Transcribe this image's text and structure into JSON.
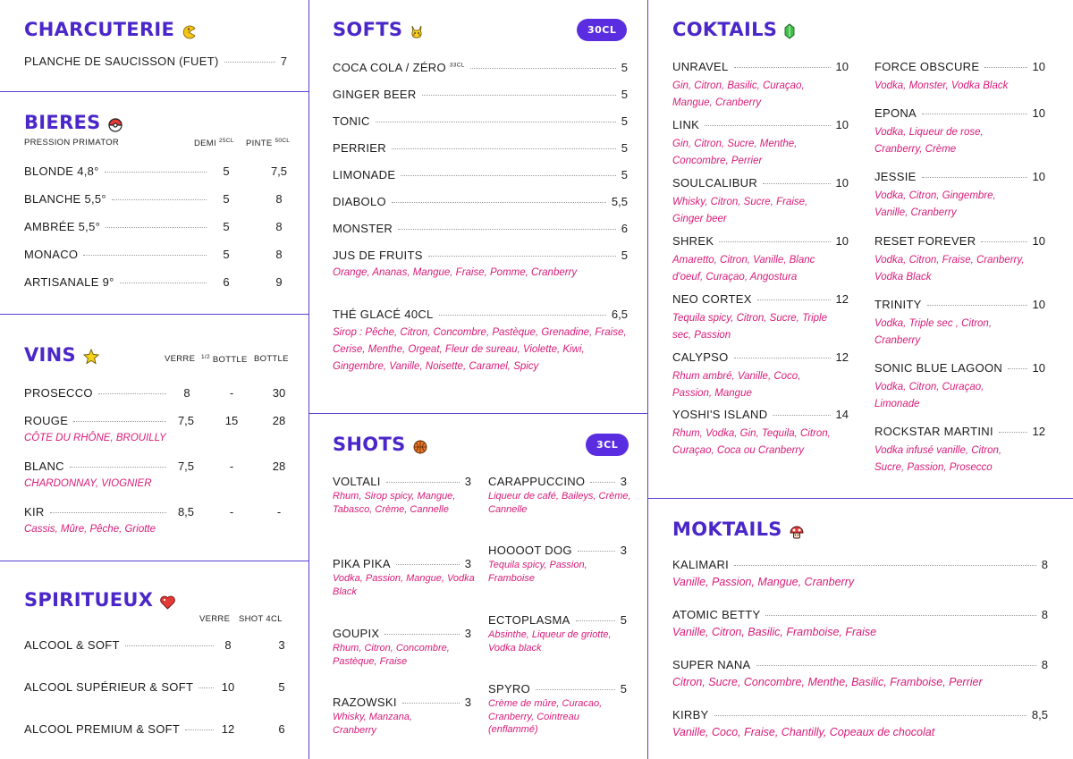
{
  "charcuterie": {
    "title": "CHARCUTERIE",
    "icon": "pacman-icon",
    "items": [
      {
        "name": "PLANCHE DE SAUCISSON (FUET)",
        "price": "7"
      }
    ]
  },
  "bieres": {
    "title": "BIERES",
    "icon": "pokeball-icon",
    "subtitle": "PRESSION PRIMATOR",
    "col_demi": "DEMI",
    "col_demi_sup": "25CL",
    "col_pinte": "PINTE",
    "col_pinte_sup": "50CL",
    "items": [
      {
        "name": "BLONDE",
        "degree": "4,8°",
        "demi": "5",
        "pinte": "7,5"
      },
      {
        "name": "BLANCHE",
        "degree": "5,5°",
        "demi": "5",
        "pinte": "8"
      },
      {
        "name": "AMBRÉE",
        "degree": "5,5°",
        "demi": "5",
        "pinte": "8"
      },
      {
        "name": "MONACO",
        "degree": "",
        "demi": "5",
        "pinte": "8"
      },
      {
        "name": "ARTISANALE",
        "degree": "9°",
        "demi": "6",
        "pinte": "9"
      }
    ]
  },
  "vins": {
    "title": "VINS",
    "icon": "star-icon",
    "col_verre": "VERRE",
    "col_half_sup": "1/2",
    "col_half": "BOTTLE",
    "col_bottle": "BOTTLE",
    "items": [
      {
        "name": "PROSECCO",
        "verre": "8",
        "half": "-",
        "bottle": "30",
        "detail": ""
      },
      {
        "name": "ROUGE",
        "verre": "7,5",
        "half": "15",
        "bottle": "28",
        "detail": "CÔTE DU RHÔNE, BROUILLY"
      },
      {
        "name": "BLANC",
        "verre": "7,5",
        "half": "-",
        "bottle": "28",
        "detail": "CHARDONNAY, VIOGNIER"
      },
      {
        "name": "KIR",
        "verre": "8,5",
        "half": "-",
        "bottle": "-",
        "detail": "Cassis, Mûre, Pêche, Griotte"
      }
    ]
  },
  "spiritueux": {
    "title": "SPIRITUEUX",
    "icon": "heart-icon",
    "col_verre": "VERRE",
    "col_shot": "SHOT 4CL",
    "items": [
      {
        "name": "ALCOOL & SOFT",
        "verre": "8",
        "shot": "3"
      },
      {
        "name": "ALCOOL SUPÉRIEUR & SOFT",
        "verre": "10",
        "shot": "5"
      },
      {
        "name": "ALCOOL PREMIUM & SOFT",
        "verre": "12",
        "shot": "6"
      }
    ]
  },
  "softs": {
    "title": "SOFTS",
    "icon": "pikachu-icon",
    "badge": "30CL",
    "items": [
      {
        "name": "COCA COLA / ZÉRO",
        "sup": "33CL",
        "price": "5",
        "detail": ""
      },
      {
        "name": "GINGER BEER",
        "sup": "",
        "price": "5",
        "detail": ""
      },
      {
        "name": "TONIC",
        "sup": "",
        "price": "5",
        "detail": ""
      },
      {
        "name": "PERRIER",
        "sup": "",
        "price": "5",
        "detail": ""
      },
      {
        "name": "LIMONADE",
        "sup": "",
        "price": "5",
        "detail": ""
      },
      {
        "name": "DIABOLO",
        "sup": "",
        "price": "5,5",
        "detail": ""
      },
      {
        "name": "MONSTER",
        "sup": "",
        "price": "6",
        "detail": ""
      },
      {
        "name": "JUS DE FRUITS",
        "sup": "",
        "price": "5",
        "detail": "Orange, Ananas, Mangue, Fraise, Pomme, Cranberry"
      },
      {
        "name": "THÉ GLACÉ 40CL",
        "sup": "",
        "price": "6,5",
        "detail": "Sirop : Pêche, Citron, Concombre, Pastèque, Grenadine, Fraise, Cerise, Menthe, Orgeat, Fleur de sureau, Violette, Kiwi, Gingembre, Vanille, Noisette, Caramel, Spicy"
      }
    ]
  },
  "shots": {
    "title": "SHOTS",
    "icon": "basketball-icon",
    "badge": "3CL",
    "items": [
      {
        "name": "VOLTALI",
        "price": "3",
        "detail": "Rhum, Sirop spicy, Mangue, Tabasco, Crème, Cannelle"
      },
      {
        "name": "CARAPPUCCINO",
        "price": "3",
        "detail": "Liqueur de café, Baileys, Crème, Cannelle"
      },
      {
        "name": "PIKA PIKA",
        "price": "3",
        "detail": "Vodka, Passion, Mangue, Vodka Black"
      },
      {
        "name": "HOOOOT DOG",
        "price": "3",
        "detail": "Tequila spicy, Passion, Framboise"
      },
      {
        "name": "GOUPIX",
        "price": "3",
        "detail": "Rhum, Citron, Concombre, Pastèque, Fraise"
      },
      {
        "name": "ECTOPLASMA",
        "price": "5",
        "detail": "Absinthe, Liqueur de griotte, Vodka black"
      },
      {
        "name": "RAZOWSKI",
        "price": "3",
        "detail": "Whisky, Manzana, Cranberry"
      },
      {
        "name": "SPYRO",
        "price": "5",
        "detail": "Crème de mûre, Curacao, Cranberry, Cointreau (enflammé)"
      }
    ]
  },
  "coktails": {
    "title": "COKTAILS",
    "icon": "rupee-icon",
    "left": [
      {
        "name": "UNRAVEL",
        "price": "10",
        "detail": "Gin, Citron, Basilic, Curaçao, Mangue, Cranberry"
      },
      {
        "name": "LINK",
        "price": "10",
        "detail": "Gin, Citron, Sucre, Menthe, Concombre, Perrier"
      },
      {
        "name": "SOULCALIBUR",
        "price": "10",
        "detail": "Whisky, Citron, Sucre, Fraise, Ginger beer"
      },
      {
        "name": "SHREK",
        "price": "10",
        "detail": "Amaretto, Citron, Vanille, Blanc d'oeuf, Curaçao, Angostura"
      },
      {
        "name": "NEO CORTEX",
        "price": "12",
        "detail": "Tequila spicy, Citron, Sucre, Triple sec, Passion"
      },
      {
        "name": "CALYPSO",
        "price": "12",
        "detail": "Rhum ambré, Vanille, Coco, Passion, Mangue"
      },
      {
        "name": "YOSHI'S ISLAND",
        "price": "14",
        "detail": "Rhum, Vodka, Gin, Tequila, Citron, Curaçao, Coca ou Cranberry"
      }
    ],
    "right": [
      {
        "name": "FORCE OBSCURE",
        "price": "10",
        "detail": "Vodka, Monster, Vodka Black"
      },
      {
        "name": "EPONA",
        "price": "10",
        "detail": "Vodka, Liqueur de rose, Cranberry, Crème"
      },
      {
        "name": "JESSIE",
        "price": "10",
        "detail": "Vodka, Citron, Gingembre, Vanille, Cranberry"
      },
      {
        "name": "RESET FOREVER",
        "price": "10",
        "detail": "Vodka, Citron, Fraise, Cranberry, Vodka Black"
      },
      {
        "name": "TRINITY",
        "price": "10",
        "detail": "Vodka, Triple sec , Citron, Cranberry"
      },
      {
        "name": "SONIC BLUE LAGOON",
        "price": "10",
        "detail": "Vodka, Citron, Curaçao, Limonade"
      },
      {
        "name": "ROCKSTAR MARTINI",
        "price": "12",
        "detail": "Vodka infusé vanille, Citron, Sucre, Passion, Prosecco"
      }
    ]
  },
  "moktails": {
    "title": "MOKTAILS",
    "icon": "mushroom-icon",
    "items": [
      {
        "name": "KALIMARI",
        "price": "8",
        "detail": "Vanille, Passion, Mangue, Cranberry"
      },
      {
        "name": "ATOMIC BETTY",
        "price": "8",
        "detail": "Vanille, Citron, Basilic, Framboise, Fraise"
      },
      {
        "name": "SUPER NANA",
        "price": "8",
        "detail": "Citron, Sucre, Concombre, Menthe, Basilic, Framboise, Perrier"
      },
      {
        "name": "KIRBY",
        "price": "8,5",
        "detail": "Vanille, Coco, Fraise, Chantilly, Copeaux de chocolat"
      }
    ]
  }
}
